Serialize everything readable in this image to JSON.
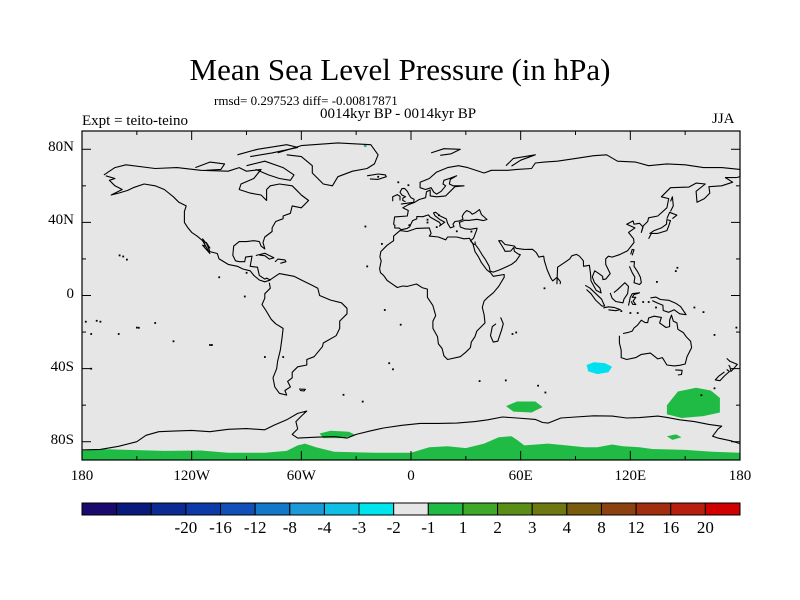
{
  "title": "Mean Sea Level Pressure (in hPa)",
  "stats": "rmsd= 0.297523 diff= -0.00817871",
  "subtitle": "0014kyr BP - 0014kyr BP",
  "experiment": "Expt = teito-teino",
  "season": "JJA",
  "map": {
    "projection": "cylindrical-equidistant",
    "lon_range": [
      -180,
      180
    ],
    "lat_range": [
      -90,
      90
    ],
    "background_color": "#e6e6e6",
    "coast_color": "#000000",
    "y_ticks": [
      {
        "lat": 80,
        "label": "80N"
      },
      {
        "lat": 40,
        "label": "40N"
      },
      {
        "lat": 0,
        "label": "0"
      },
      {
        "lat": -40,
        "label": "40S"
      },
      {
        "lat": -80,
        "label": "80S"
      }
    ],
    "x_ticks": [
      {
        "lon": -180,
        "label": "180"
      },
      {
        "lon": -120,
        "label": "120W"
      },
      {
        "lon": -60,
        "label": "60W"
      },
      {
        "lon": 0,
        "label": "0"
      },
      {
        "lon": 60,
        "label": "60E"
      },
      {
        "lon": 120,
        "label": "120E"
      },
      {
        "lon": 180,
        "label": "180"
      }
    ],
    "anomaly_regions": [
      {
        "name": "south-indian-ocean-negative",
        "value_range": [
          -2,
          -1
        ],
        "color": "#00e0ee",
        "polygon": [
          [
            96,
            -38
          ],
          [
            100,
            -36.5
          ],
          [
            106,
            -37
          ],
          [
            110,
            -39
          ],
          [
            108,
            -42
          ],
          [
            102,
            -43
          ],
          [
            97,
            -41.5
          ]
        ]
      },
      {
        "name": "southern-ocean-positive-1",
        "value_range": [
          1,
          2
        ],
        "color": "#20bb44",
        "polygon": [
          [
            140,
            -60
          ],
          [
            146,
            -52.5
          ],
          [
            156,
            -50.5
          ],
          [
            164,
            -52
          ],
          [
            169,
            -56
          ],
          [
            169,
            -64
          ],
          [
            160,
            -66
          ],
          [
            148,
            -67
          ],
          [
            140,
            -65
          ]
        ]
      },
      {
        "name": "southern-ocean-positive-2",
        "value_range": [
          1,
          2
        ],
        "color": "#20bb44",
        "polygon": [
          [
            52,
            -60.5
          ],
          [
            58,
            -58
          ],
          [
            68,
            -58
          ],
          [
            72,
            -61
          ],
          [
            66,
            -64
          ],
          [
            56,
            -63.5
          ]
        ]
      },
      {
        "name": "weddell-sea-positive",
        "value_range": [
          1,
          2
        ],
        "color": "#20bb44",
        "polygon": [
          [
            -50,
            -75.5
          ],
          [
            -44,
            -74
          ],
          [
            -34,
            -74.5
          ],
          [
            -30,
            -76.5
          ],
          [
            -38,
            -78
          ],
          [
            -48,
            -78
          ]
        ]
      },
      {
        "name": "antarctic-positive-band",
        "value_range": [
          1,
          2
        ],
        "color": "#20bb44",
        "polygon": [
          [
            -180,
            -90
          ],
          [
            -180,
            -85
          ],
          [
            -170,
            -84
          ],
          [
            -155,
            -84.5
          ],
          [
            -135,
            -85
          ],
          [
            -115,
            -84.8
          ],
          [
            -100,
            -86
          ],
          [
            -80,
            -86
          ],
          [
            -68,
            -85
          ],
          [
            -62,
            -82
          ],
          [
            -58,
            -81
          ],
          [
            -52,
            -83
          ],
          [
            -42,
            -85.5
          ],
          [
            -20,
            -86
          ],
          [
            0,
            -86
          ],
          [
            10,
            -83
          ],
          [
            20,
            -82.5
          ],
          [
            30,
            -83.5
          ],
          [
            40,
            -81
          ],
          [
            48,
            -77.5
          ],
          [
            55,
            -77
          ],
          [
            58,
            -79
          ],
          [
            62,
            -82
          ],
          [
            75,
            -81
          ],
          [
            85,
            -82
          ],
          [
            95,
            -83
          ],
          [
            102,
            -83
          ],
          [
            110,
            -81.5
          ],
          [
            116,
            -82.5
          ],
          [
            125,
            -83
          ],
          [
            132,
            -84
          ],
          [
            150,
            -84.5
          ],
          [
            165,
            -85.5
          ],
          [
            180,
            -86
          ],
          [
            180,
            -90
          ]
        ]
      },
      {
        "name": "ross-sea-small-positive",
        "value_range": [
          1,
          2
        ],
        "color": "#20bb44",
        "polygon": [
          [
            140,
            -77
          ],
          [
            145,
            -76
          ],
          [
            148,
            -77.5
          ],
          [
            143,
            -79
          ]
        ]
      }
    ]
  },
  "colorbar": {
    "colors": [
      "#1a0a6e",
      "#0a1a7c",
      "#0c2a94",
      "#0e3aa8",
      "#1050b8",
      "#1278c8",
      "#1a9ad6",
      "#10c0e4",
      "#00e4ee",
      "#e6e6e6",
      "#20bb44",
      "#40a828",
      "#5b8e16",
      "#6e7810",
      "#7a5a0c",
      "#8c4210",
      "#a22e10",
      "#b81e10",
      "#d00000"
    ],
    "labels": [
      "-20",
      "-16",
      "-12",
      "-8",
      "-4",
      "-3",
      "-2",
      "-1",
      "1",
      "2",
      "3",
      "4",
      "8",
      "12",
      "16",
      "20"
    ]
  }
}
